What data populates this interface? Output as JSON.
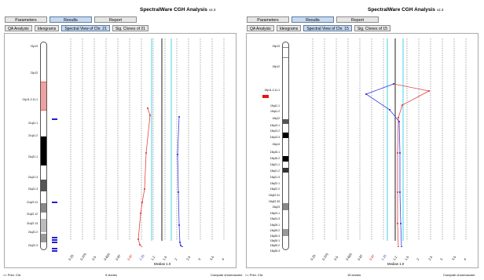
{
  "panels": [
    {
      "id": "left",
      "title": "SpectralWare CGH Analysis",
      "version": "v2.3",
      "tabs": [
        "Parameters",
        "Results",
        "Report"
      ],
      "active_tab": 1,
      "subtabs": [
        "QA Analysis",
        "Ideograms",
        "Spectral View of Chr. 21",
        "Sig. Clones of 21"
      ],
      "active_subtab": 2,
      "band_labels": [
        "21p13",
        "21p12",
        "21p11.2-11.1",
        "21q11.1",
        "21q11.2",
        "21q21.1",
        "21q21.3",
        "21q21.3",
        "21q22.11",
        "21q22.12",
        "21q22.13",
        "21q22.2",
        "21q22.3"
      ],
      "x_tick_labels": [
        "0.25",
        "0.375",
        "0.5",
        "0.625",
        "0.87",
        "0.87",
        "1.15",
        "1.2",
        "1.5",
        "2",
        "2.5",
        "3",
        "3.5",
        "4"
      ],
      "x_tick_colors": [
        "black",
        "black",
        "black",
        "black",
        "black",
        "red",
        "blue",
        "black",
        "black",
        "black",
        "black",
        "black",
        "black",
        "black"
      ],
      "median_label": "Median 1.0",
      "footer": {
        "left": "<< Prev. Chr.",
        "center": "9 clones",
        "right": "Compute chromosome"
      },
      "colors": {
        "ratio_red": "#e84040",
        "ratio_blue": "#3a3ae0",
        "threshold": "#44d3e8",
        "median": "#222222",
        "marker": "#2222cc"
      },
      "red_markers": []
    },
    {
      "id": "right",
      "title": "SpectralWare CGH Analysis",
      "version": "v2.3",
      "tabs": [
        "Parameters",
        "Results",
        "Report"
      ],
      "active_tab": 1,
      "subtabs": [
        "QA Analysis",
        "Ideograms",
        "Spectral View of Chr. 15",
        "Sig. Clones of 15"
      ],
      "active_subtab": 2,
      "band_labels": [
        "15p13",
        "15p12",
        "15p11.2-11.1",
        "15q11.1",
        "15q11.2",
        "15q12",
        "15q13.1",
        "15q13.2",
        "15q13.3",
        "15q14",
        "15q15.1",
        "15q15.2",
        "15q21.1",
        "15q21.2",
        "15q21.3",
        "15q22.1",
        "15q22.2",
        "15q22.31",
        "15q22.33",
        "15q23",
        "15q24.1",
        "15q24.3",
        "15q25.1",
        "15q25.2",
        "15q25.3",
        "15q26.1",
        "15q26.2",
        "15q26.3"
      ],
      "x_tick_labels": [
        "0.25",
        "0.375",
        "0.5",
        "0.625",
        "0.87",
        "0.87",
        "1.15",
        "1.2",
        "1.5",
        "2",
        "2.5",
        "3",
        "3.5",
        "4"
      ],
      "x_tick_colors": [
        "black",
        "black",
        "black",
        "black",
        "black",
        "red",
        "blue",
        "black",
        "black",
        "black",
        "black",
        "black",
        "black",
        "black"
      ],
      "median_label": "Median 1.0",
      "footer": {
        "left": "<< Prev. Chr.",
        "center": "15 clones",
        "right": "Compute chromosome"
      },
      "colors": {
        "ratio_red": "#e84040",
        "ratio_blue": "#3a3ae0",
        "threshold": "#44d3e8",
        "median": "#222222",
        "marker": "#2222cc"
      },
      "red_markers": [
        "red-flag"
      ]
    }
  ]
}
